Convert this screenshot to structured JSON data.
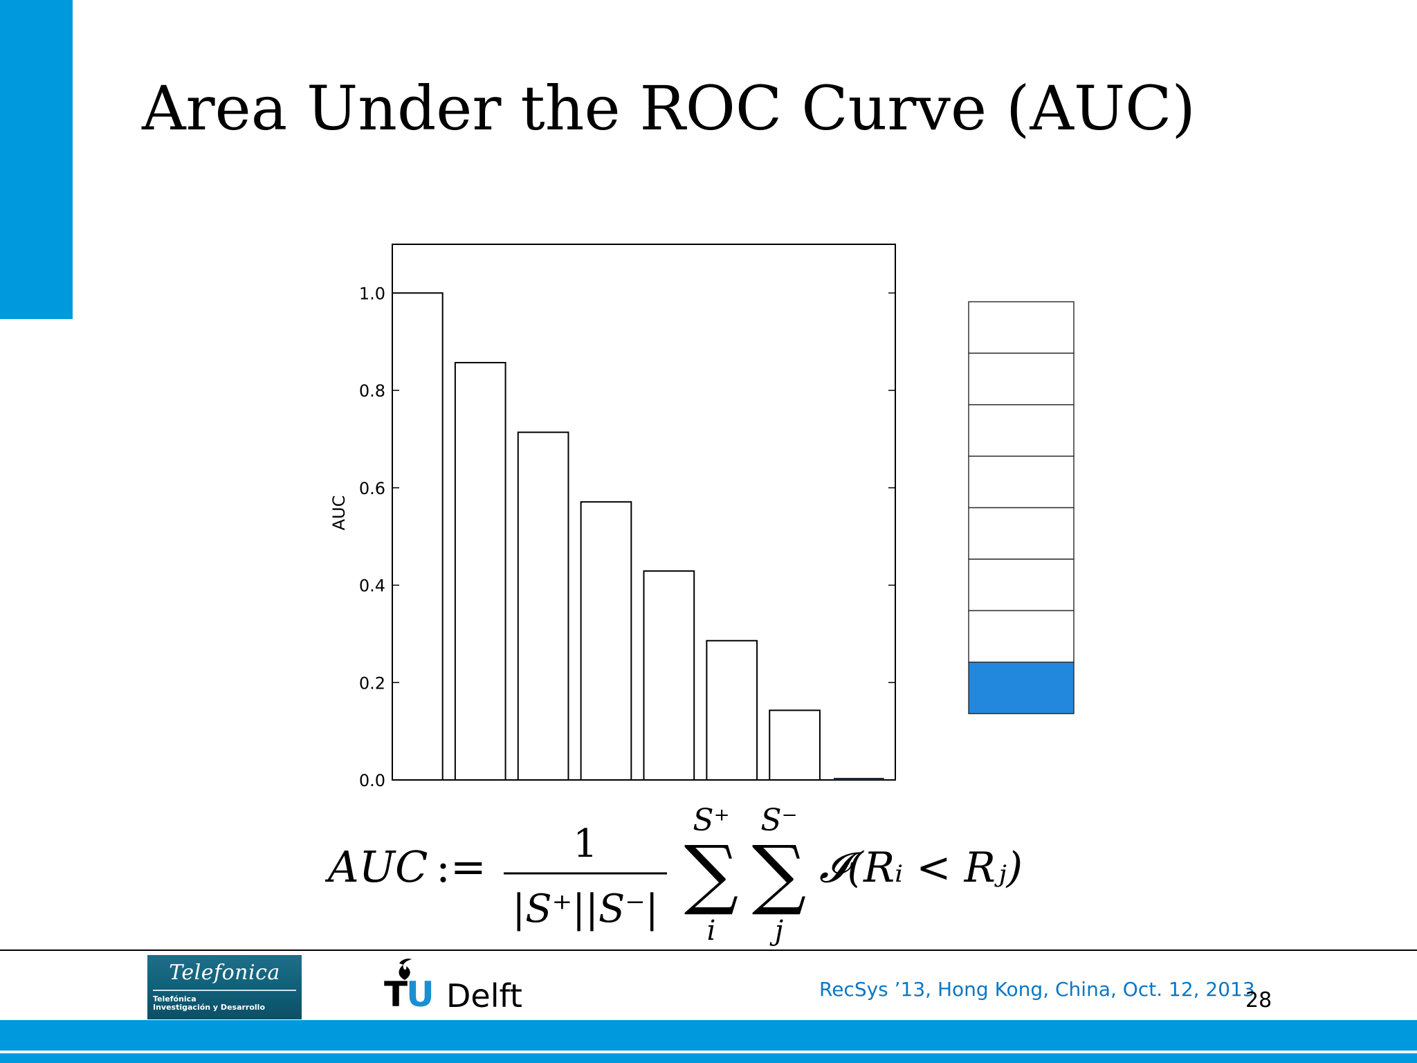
{
  "slide": {
    "title": "Area Under the ROC Curve (AUC)",
    "page_number": "28",
    "conference": "RecSys ’13, Hong Kong, China, Oct. 12, 2013",
    "accent_color": "#0099de"
  },
  "logos": {
    "telefonica_brand": "Telefonica",
    "telefonica_sub_line1": "Telefónica",
    "telefonica_sub_line2": "Investigación y Desarrollo",
    "tudelft_tu": "TU",
    "tudelft_delft": "Delft"
  },
  "chart_data": {
    "type": "bar",
    "title": "",
    "xlabel": "",
    "ylabel": "AUC",
    "ylim": [
      0.0,
      1.1
    ],
    "yticks": [
      "0.0",
      "0.2",
      "0.4",
      "0.6",
      "0.8",
      "1.0"
    ],
    "ytick_values": [
      0.0,
      0.2,
      0.4,
      0.6,
      0.8,
      1.0
    ],
    "values": [
      1.0,
      0.857,
      0.714,
      0.571,
      0.429,
      0.286,
      0.143,
      0.0
    ],
    "bar_fill": "#ffffff",
    "bar_stroke": "#000000",
    "grid": false,
    "ranking_list": {
      "cells": 8,
      "highlighted_index": 7,
      "highlight_color": "#2288dd"
    }
  },
  "formula": {
    "lhs": "AUC",
    "assign": ":=",
    "numerator": "1",
    "denominator": "|S⁺||S⁻|",
    "sum1_top": "S⁺",
    "sum1_bottom": "i",
    "sum2_top": "S⁻",
    "sum2_bottom": "j",
    "sigma": "∑",
    "body": "𝓘(Rᵢ < Rⱼ)"
  }
}
